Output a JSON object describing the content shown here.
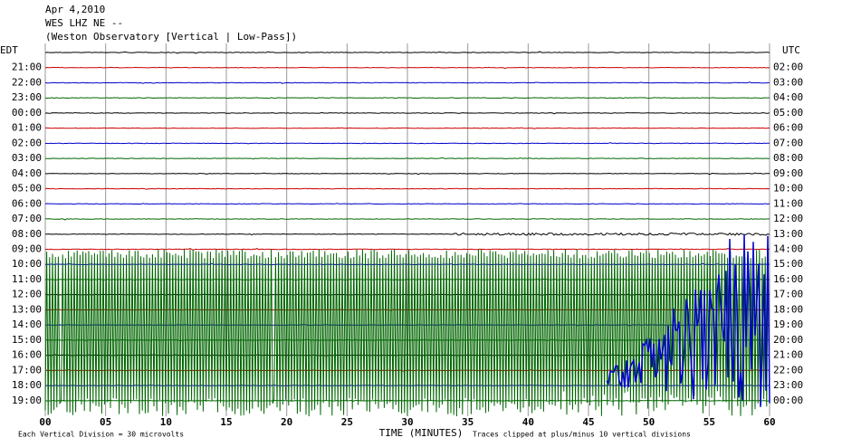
{
  "header": {
    "date": "Apr 4,2010",
    "station": "WES LHZ NE --",
    "observatory": "(Weston Observatory [Vertical | Low-Pass])"
  },
  "chart_data": {
    "type": "helicorder",
    "left_axis_title": "EDT",
    "right_axis_title": "UTC",
    "categories": [
      null,
      "21:00",
      "22:00",
      "23:00",
      "00:00",
      "01:00",
      "02:00",
      "03:00",
      "04:00",
      "05:00",
      "06:00",
      "07:00",
      "08:00",
      "09:00",
      "10:00",
      "11:00",
      "12:00",
      "13:00",
      "14:00",
      "15:00",
      "16:00",
      "17:00",
      "18:00",
      "19:00"
    ],
    "utc_labels": [
      null,
      "02:00",
      "03:00",
      "04:00",
      "05:00",
      "06:00",
      "07:00",
      "08:00",
      "09:00",
      "10:00",
      "11:00",
      "12:00",
      "13:00",
      "14:00",
      "15:00",
      "16:00",
      "17:00",
      "18:00",
      "19:00",
      "20:00",
      "21:00",
      "22:00",
      "23:00",
      "00:00"
    ],
    "colors": [
      "#000000",
      "#cc0000",
      "#0000cc",
      "#006600"
    ],
    "xlim": [
      0,
      60
    ],
    "xticks": [
      {
        "value": 0,
        "label": "00"
      },
      {
        "value": 5,
        "label": "05"
      },
      10,
      15,
      20,
      25,
      30,
      35,
      40,
      45,
      50,
      55,
      60
    ],
    "x_label": "TIME (MINUTES)",
    "footer_left": "Each Vertical Division = 30 microvolts",
    "footer_right": "Traces clipped at plus/minus 10 vertical divisions"
  }
}
